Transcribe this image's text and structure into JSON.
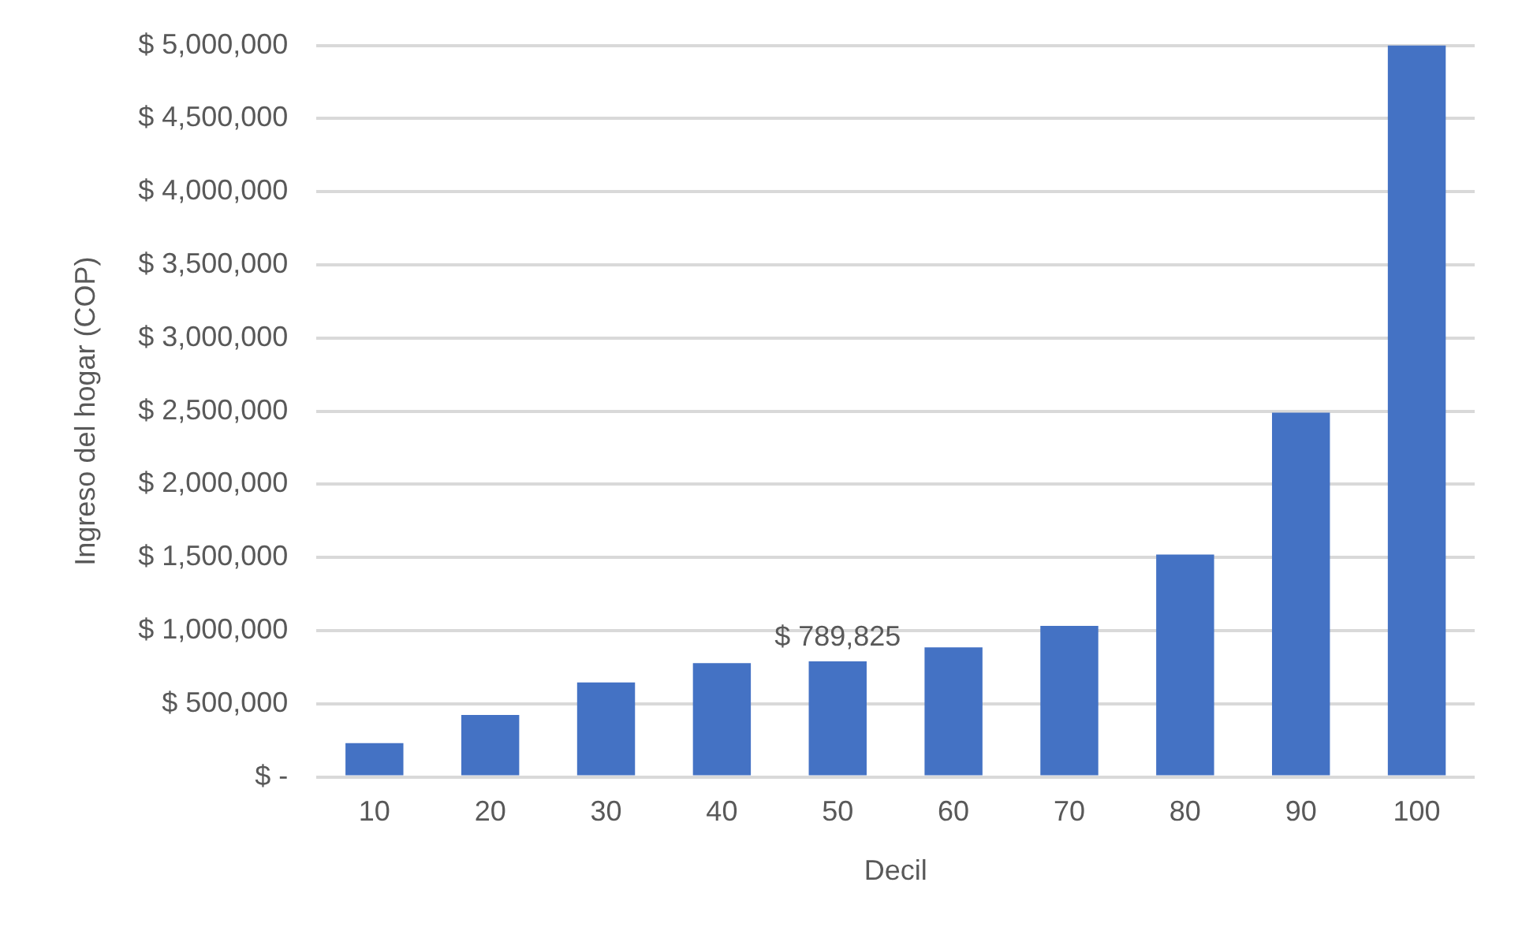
{
  "chart_data": {
    "type": "bar",
    "xlabel": "Decil",
    "ylabel": "Ingreso del hogar (COP)",
    "categories": [
      "10",
      "20",
      "30",
      "40",
      "50",
      "60",
      "70",
      "80",
      "90",
      "100"
    ],
    "values": [
      231000,
      423000,
      646000,
      778000,
      789825,
      885000,
      1032000,
      1520000,
      2490000,
      5000000
    ],
    "value_labels": [
      null,
      null,
      null,
      null,
      "$ 789,825",
      null,
      null,
      null,
      null,
      null
    ],
    "color": "#4472c4",
    "ylim": [
      0,
      5000000
    ],
    "yticks": [
      {
        "value": 0,
        "label": "$ -"
      },
      {
        "value": 500000,
        "label": "$ 500,000"
      },
      {
        "value": 1000000,
        "label": "$ 1,000,000"
      },
      {
        "value": 1500000,
        "label": "$ 1,500,000"
      },
      {
        "value": 2000000,
        "label": "$ 2,000,000"
      },
      {
        "value": 2500000,
        "label": "$ 2,500,000"
      },
      {
        "value": 3000000,
        "label": "$ 3,000,000"
      },
      {
        "value": 3500000,
        "label": "$ 3,500,000"
      },
      {
        "value": 4000000,
        "label": "$ 4,000,000"
      },
      {
        "value": 4500000,
        "label": "$ 4,500,000"
      },
      {
        "value": 5000000,
        "label": "$ 5,000,000"
      }
    ],
    "grid": "y",
    "legend": false
  }
}
